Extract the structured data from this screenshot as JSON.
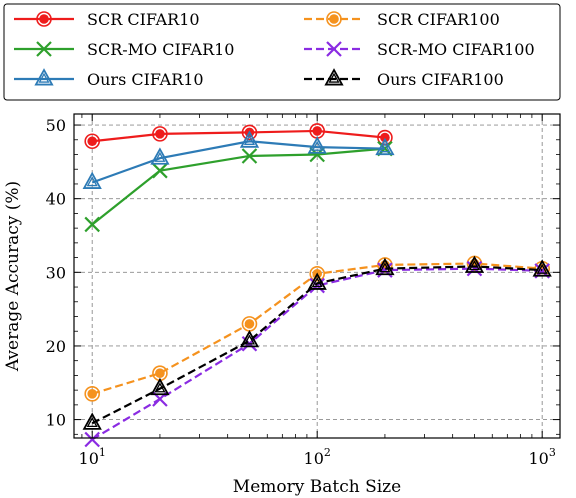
{
  "chart_data": {
    "type": "line",
    "xlabel": "Memory Batch Size",
    "ylabel": "Average Accuracy (%)",
    "xscale": "log",
    "xlim": [
      8.3,
      1200
    ],
    "ylim": [
      7.5,
      51.5
    ],
    "x_ticks": [
      {
        "value": 10,
        "base": "10",
        "exp": "1"
      },
      {
        "value": 100,
        "base": "10",
        "exp": "2"
      },
      {
        "value": 1000,
        "base": "10",
        "exp": "3"
      }
    ],
    "y_ticks": [
      {
        "value": 10,
        "label": "10"
      },
      {
        "value": 20,
        "label": "20"
      },
      {
        "value": 30,
        "label": "30"
      },
      {
        "value": 40,
        "label": "40"
      },
      {
        "value": 50,
        "label": "50"
      }
    ],
    "grid": true,
    "legend_position": "top",
    "series": [
      {
        "name": "SCR CIFAR10",
        "color": "#ee1c1c",
        "dash": "solid",
        "marker": "circle",
        "x": [
          10,
          20,
          50,
          100,
          200
        ],
        "y": [
          47.8,
          48.8,
          49.0,
          49.2,
          48.3
        ]
      },
      {
        "name": "SCR CIFAR100",
        "color": "#f5921e",
        "dash": "dashed",
        "marker": "circle",
        "x": [
          10,
          20,
          50,
          100,
          200,
          500,
          1000
        ],
        "y": [
          13.5,
          16.3,
          23.0,
          29.8,
          31.0,
          31.2,
          30.5
        ]
      },
      {
        "name": "SCR-MO CIFAR10",
        "color": "#2ea02c",
        "dash": "solid",
        "marker": "x",
        "x": [
          10,
          20,
          50,
          100,
          200
        ],
        "y": [
          36.5,
          43.8,
          45.8,
          46.0,
          46.8
        ]
      },
      {
        "name": "SCR-MO CIFAR100",
        "color": "#8a2be2",
        "dash": "dashed",
        "marker": "x",
        "x": [
          10,
          20,
          50,
          100,
          200,
          500,
          1000
        ],
        "y": [
          7.3,
          12.8,
          20.3,
          28.2,
          30.3,
          30.5,
          30.2
        ]
      },
      {
        "name": "Ours CIFAR10",
        "color": "#2d7bb6",
        "dash": "solid",
        "marker": "triangle",
        "x": [
          10,
          20,
          50,
          100,
          200
        ],
        "y": [
          42.2,
          45.5,
          47.8,
          47.0,
          46.8
        ]
      },
      {
        "name": "Ours CIFAR100",
        "color": "#000000",
        "dash": "dashed",
        "marker": "triangle",
        "x": [
          10,
          20,
          50,
          100,
          200,
          500,
          1000
        ],
        "y": [
          9.5,
          14.2,
          20.7,
          28.5,
          30.5,
          30.8,
          30.3
        ]
      }
    ]
  }
}
